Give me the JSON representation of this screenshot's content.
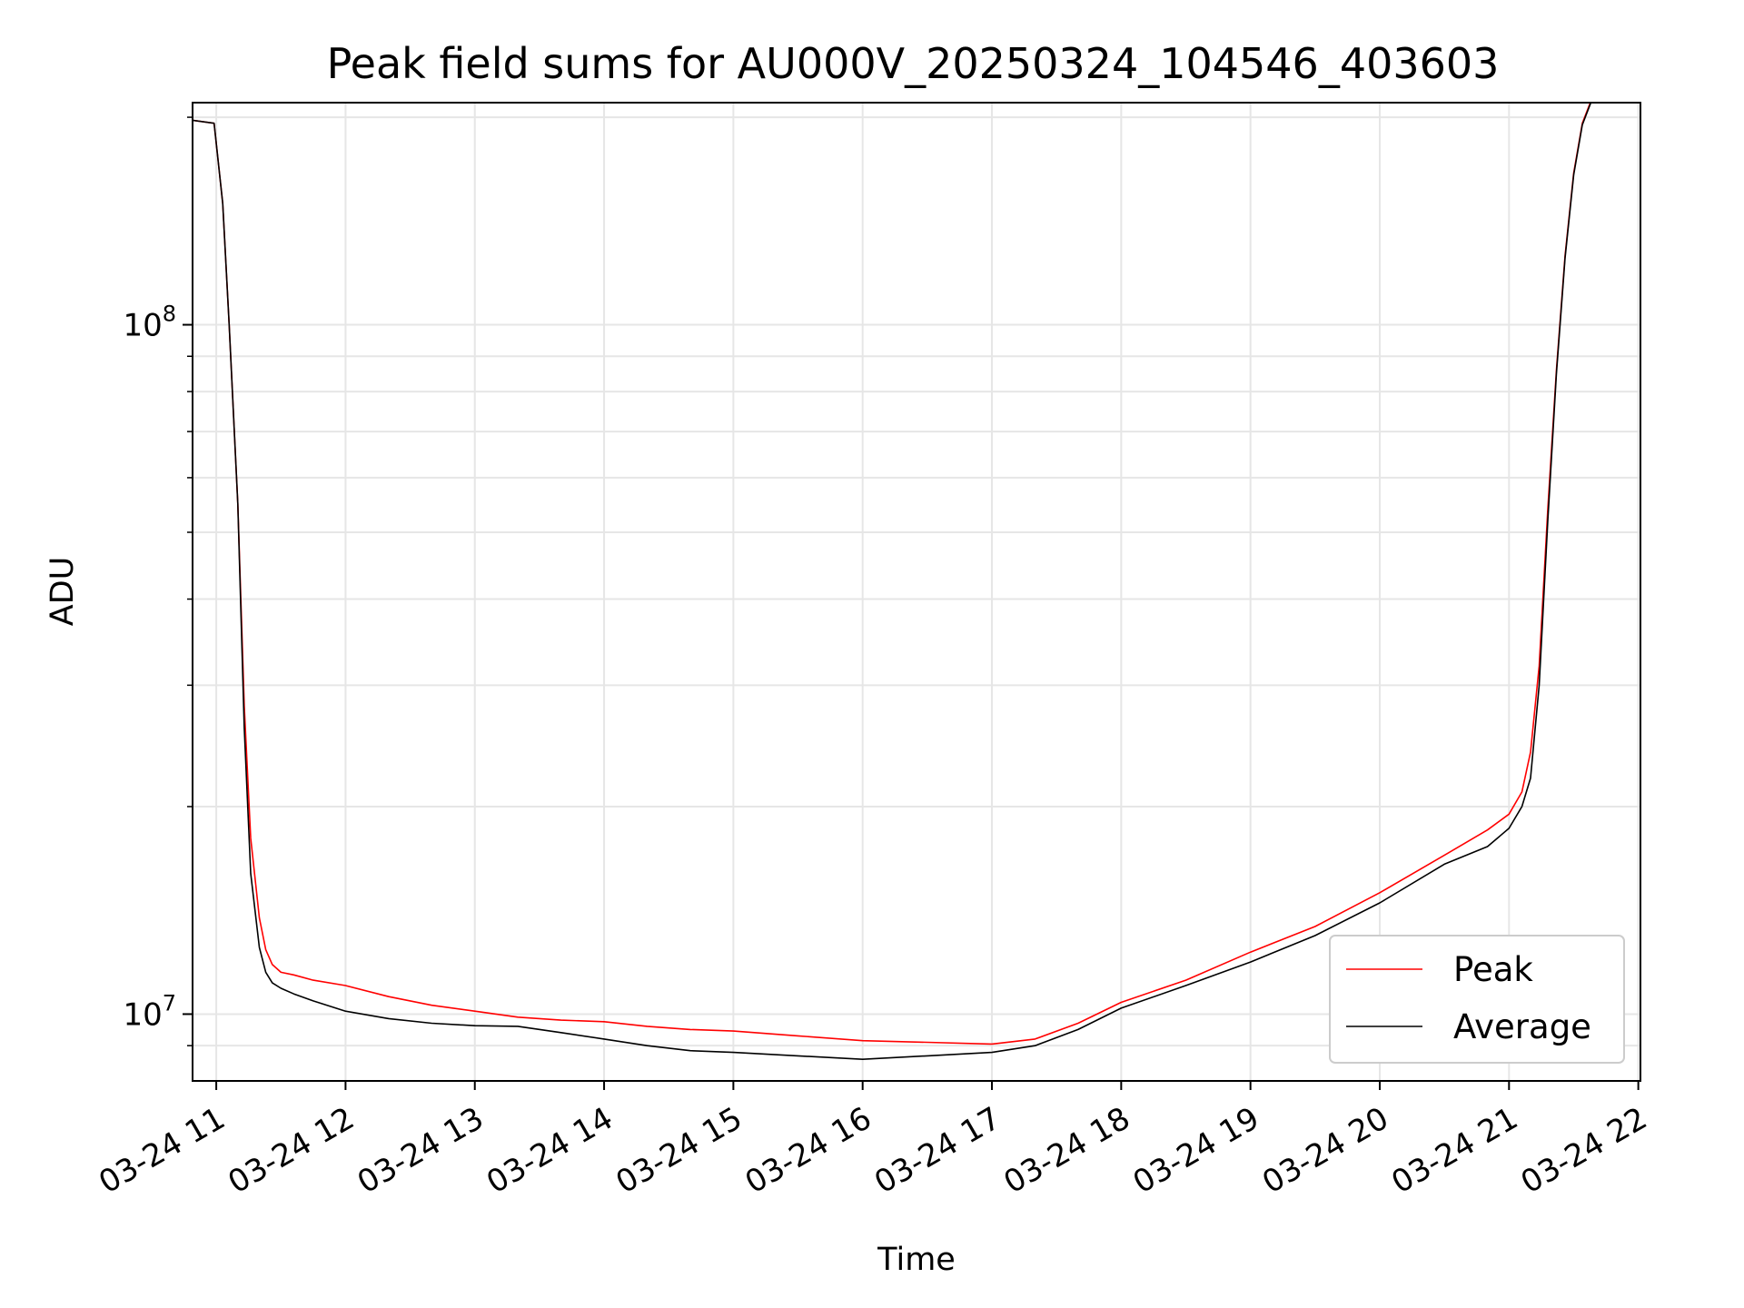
{
  "chart_data": {
    "type": "line",
    "title": "Peak field sums for AU000V_20250324_104546_403603",
    "xlabel": "Time",
    "ylabel": "ADU",
    "yscale": "log",
    "xlim": [
      "2025-03-24T10:49",
      "2025-03-24T22:01"
    ],
    "ylim": [
      8000000,
      210000000
    ],
    "x_tick_labels": [
      "03-24 11",
      "03-24 12",
      "03-24 13",
      "03-24 14",
      "03-24 15",
      "03-24 16",
      "03-24 17",
      "03-24 18",
      "03-24 19",
      "03-24 20",
      "03-24 21",
      "03-24 22"
    ],
    "x_ticks": [
      "2025-03-24T11:00",
      "2025-03-24T12:00",
      "2025-03-24T13:00",
      "2025-03-24T14:00",
      "2025-03-24T15:00",
      "2025-03-24T16:00",
      "2025-03-24T17:00",
      "2025-03-24T18:00",
      "2025-03-24T19:00",
      "2025-03-24T20:00",
      "2025-03-24T21:00",
      "2025-03-24T22:00"
    ],
    "y_ticks": [
      {
        "value": 10000000,
        "base": "10",
        "exp": "7"
      },
      {
        "value": 100000000,
        "base": "10",
        "exp": "8"
      }
    ],
    "y_minor_ticks": [
      9000000,
      20000000,
      30000000,
      40000000,
      50000000,
      60000000,
      70000000,
      80000000,
      90000000,
      200000000
    ],
    "grid": true,
    "legend_position": "lower right",
    "series": [
      {
        "name": "Peak",
        "color": "#ff0000"
      },
      {
        "name": "Average",
        "color": "#000000"
      }
    ],
    "x": [
      "2025-03-24T10:49",
      "2025-03-24T10:59",
      "2025-03-24T11:03",
      "2025-03-24T11:06",
      "2025-03-24T11:10",
      "2025-03-24T11:13",
      "2025-03-24T11:16",
      "2025-03-24T11:20",
      "2025-03-24T11:23",
      "2025-03-24T11:26",
      "2025-03-24T11:30",
      "2025-03-24T11:36",
      "2025-03-24T11:45",
      "2025-03-24T12:00",
      "2025-03-24T12:20",
      "2025-03-24T12:40",
      "2025-03-24T13:00",
      "2025-03-24T13:20",
      "2025-03-24T13:40",
      "2025-03-24T14:00",
      "2025-03-24T14:20",
      "2025-03-24T14:40",
      "2025-03-24T15:00",
      "2025-03-24T15:30",
      "2025-03-24T16:00",
      "2025-03-24T16:30",
      "2025-03-24T17:00",
      "2025-03-24T17:20",
      "2025-03-24T17:40",
      "2025-03-24T18:00",
      "2025-03-24T18:30",
      "2025-03-24T19:00",
      "2025-03-24T19:30",
      "2025-03-24T20:00",
      "2025-03-24T20:30",
      "2025-03-24T20:50",
      "2025-03-24T21:00",
      "2025-03-24T21:06",
      "2025-03-24T21:10",
      "2025-03-24T21:14",
      "2025-03-24T21:18",
      "2025-03-24T21:22",
      "2025-03-24T21:26",
      "2025-03-24T21:30",
      "2025-03-24T21:34",
      "2025-03-24T21:38",
      "2025-03-24T21:43"
    ],
    "average": [
      198000000,
      196000000,
      150000000,
      100000000,
      55000000,
      26000000,
      16000000,
      12500000,
      11500000,
      11100000,
      10900000,
      10700000,
      10450000,
      10100000,
      9850000,
      9700000,
      9620000,
      9600000,
      9400000,
      9200000,
      9000000,
      8850000,
      8800000,
      8700000,
      8600000,
      8700000,
      8800000,
      9000000,
      9500000,
      10200000,
      11000000,
      11900000,
      13000000,
      14500000,
      16500000,
      17500000,
      18600000,
      20000000,
      22000000,
      30000000,
      52000000,
      85000000,
      125000000,
      165000000,
      195000000,
      210000000,
      212000000
    ],
    "peak": [
      198000000,
      196000000,
      150000000,
      100000000,
      55000000,
      28000000,
      18000000,
      13800000,
      12400000,
      11800000,
      11500000,
      11400000,
      11200000,
      11000000,
      10600000,
      10300000,
      10100000,
      9900000,
      9800000,
      9750000,
      9600000,
      9500000,
      9450000,
      9300000,
      9150000,
      9100000,
      9050000,
      9200000,
      9700000,
      10400000,
      11200000,
      12300000,
      13400000,
      15000000,
      17000000,
      18500000,
      19500000,
      21000000,
      24000000,
      32000000,
      54000000,
      86000000,
      126000000,
      166000000,
      196000000,
      211000000,
      213000000
    ],
    "legend": [
      "Peak",
      "Average"
    ]
  }
}
